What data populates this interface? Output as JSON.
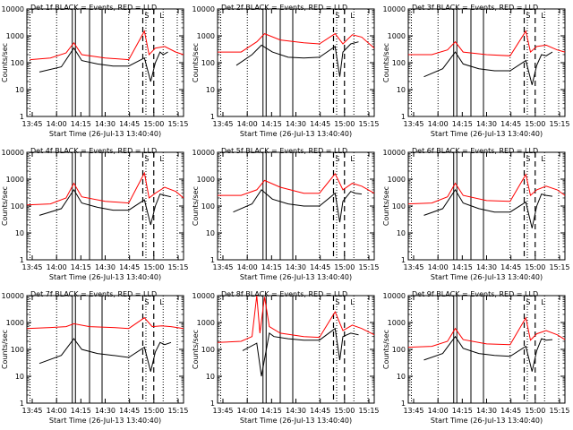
{
  "chart_data": [
    {
      "type": "line",
      "title": "Det 1f BLACK = Events, RED = LLD",
      "xlabel": "Start Time (26-Jul-13 13:40:40)",
      "ylabel": "Counts/sec",
      "xticks": [
        "13:45",
        "14:00",
        "14:15",
        "14:30",
        "14:45",
        "15:00",
        "15:15"
      ],
      "yscale": "log",
      "ylim": [
        1,
        10000
      ],
      "yticks": [
        "1",
        "10",
        "100",
        "1000",
        "10000"
      ],
      "markers": [
        "S",
        "L"
      ],
      "series": [
        {
          "name": "Events",
          "color": "#000000",
          "x": [
            0.08,
            0.22,
            0.3,
            0.35,
            0.45,
            0.55,
            0.65,
            0.75,
            0.79,
            0.82,
            0.85,
            0.87,
            0.9
          ],
          "y": [
            45,
            70,
            350,
            120,
            90,
            75,
            75,
            150,
            20,
            100,
            250,
            200,
            250
          ]
        },
        {
          "name": "LLD",
          "color": "#ff0000",
          "x": [
            0.02,
            0.15,
            0.25,
            0.3,
            0.35,
            0.5,
            0.65,
            0.75,
            0.78,
            0.82,
            0.88,
            0.95,
            1.0
          ],
          "y": [
            130,
            150,
            230,
            550,
            200,
            150,
            130,
            1500,
            200,
            350,
            400,
            250,
            200
          ]
        }
      ]
    },
    {
      "type": "line",
      "title": "Det 2f BLACK = Events, RED = LLD",
      "xlabel": "Start Time (26-Jul-13 13:40:40)",
      "ylabel": "Counts/sec",
      "xticks": [
        "13:45",
        "14:00",
        "14:15",
        "14:30",
        "14:45",
        "15:00",
        "15:15"
      ],
      "yscale": "log",
      "ylim": [
        1,
        10000
      ],
      "yticks": [
        "1",
        "10",
        "100",
        "1000",
        "10000"
      ],
      "markers": [
        "S",
        "L"
      ],
      "series": [
        {
          "name": "Events",
          "color": "#000000",
          "x": [
            0.12,
            0.22,
            0.28,
            0.35,
            0.45,
            0.55,
            0.65,
            0.75,
            0.78,
            0.8,
            0.85,
            0.9
          ],
          "y": [
            80,
            200,
            450,
            250,
            160,
            150,
            160,
            400,
            30,
            250,
            500,
            600
          ]
        },
        {
          "name": "LLD",
          "color": "#ff0000",
          "x": [
            0.0,
            0.15,
            0.25,
            0.3,
            0.4,
            0.55,
            0.65,
            0.75,
            0.8,
            0.86,
            0.92,
            1.0
          ],
          "y": [
            250,
            250,
            600,
            1200,
            700,
            550,
            500,
            1200,
            500,
            1100,
            900,
            350
          ]
        }
      ]
    },
    {
      "type": "line",
      "title": "Det 3f BLACK = Events, RED = LLD",
      "xlabel": "Start Time (26-Jul-13 13:40:40)",
      "ylabel": "Counts/sec",
      "xticks": [
        "13:45",
        "14:00",
        "14:15",
        "14:30",
        "14:45",
        "15:00",
        "15:15"
      ],
      "yscale": "log",
      "ylim": [
        1,
        10000
      ],
      "yticks": [
        "1",
        "10",
        "100",
        "1000",
        "10000"
      ],
      "markers": [
        "S",
        "L"
      ],
      "series": [
        {
          "name": "Events",
          "color": "#000000",
          "x": [
            0.1,
            0.22,
            0.3,
            0.35,
            0.45,
            0.55,
            0.65,
            0.75,
            0.79,
            0.82,
            0.85,
            0.88,
            0.92
          ],
          "y": [
            30,
            60,
            250,
            90,
            60,
            50,
            50,
            120,
            15,
            80,
            200,
            180,
            250
          ]
        },
        {
          "name": "LLD",
          "color": "#ff0000",
          "x": [
            0.0,
            0.15,
            0.25,
            0.3,
            0.35,
            0.5,
            0.65,
            0.75,
            0.78,
            0.82,
            0.88,
            0.95,
            1.0
          ],
          "y": [
            200,
            200,
            300,
            600,
            250,
            200,
            180,
            1500,
            250,
            400,
            450,
            300,
            250
          ]
        }
      ]
    },
    {
      "type": "line",
      "title": "Det 4f BLACK = Events, RED = LLD",
      "xlabel": "Start Time (26-Jul-13 13:40:40)",
      "ylabel": "Counts/sec",
      "xticks": [
        "13:45",
        "14:00",
        "14:15",
        "14:30",
        "14:45",
        "15:00",
        "15:15"
      ],
      "yscale": "log",
      "ylim": [
        1,
        10000
      ],
      "yticks": [
        "1",
        "10",
        "100",
        "1000",
        "10000"
      ],
      "markers": [
        "S",
        "L"
      ],
      "series": [
        {
          "name": "Events",
          "color": "#000000",
          "x": [
            0.08,
            0.22,
            0.3,
            0.35,
            0.45,
            0.55,
            0.65,
            0.75,
            0.79,
            0.82,
            0.85,
            0.88,
            0.92
          ],
          "y": [
            45,
            80,
            400,
            130,
            90,
            70,
            70,
            170,
            20,
            100,
            280,
            250,
            220
          ]
        },
        {
          "name": "LLD",
          "color": "#ff0000",
          "x": [
            0.0,
            0.15,
            0.25,
            0.3,
            0.35,
            0.5,
            0.65,
            0.75,
            0.78,
            0.82,
            0.88,
            0.95,
            1.0
          ],
          "y": [
            110,
            120,
            200,
            700,
            220,
            150,
            130,
            1700,
            200,
            300,
            500,
            350,
            200
          ]
        }
      ]
    },
    {
      "type": "line",
      "title": "Det 5f BLACK = Events, RED = LLD",
      "xlabel": "Start Time (26-Jul-13 13:40:40)",
      "ylabel": "Counts/sec",
      "xticks": [
        "13:45",
        "14:00",
        "14:15",
        "14:30",
        "14:45",
        "15:00",
        "15:15"
      ],
      "yscale": "log",
      "ylim": [
        1,
        10000
      ],
      "yticks": [
        "1",
        "10",
        "100",
        "1000",
        "10000"
      ],
      "markers": [
        "S",
        "L"
      ],
      "series": [
        {
          "name": "Events",
          "color": "#000000",
          "x": [
            0.1,
            0.22,
            0.28,
            0.35,
            0.45,
            0.55,
            0.65,
            0.75,
            0.78,
            0.8,
            0.85,
            0.88,
            0.92
          ],
          "y": [
            60,
            120,
            400,
            180,
            120,
            100,
            100,
            300,
            25,
            150,
            350,
            300,
            280
          ]
        },
        {
          "name": "LLD",
          "color": "#ff0000",
          "x": [
            0.0,
            0.15,
            0.25,
            0.3,
            0.4,
            0.55,
            0.65,
            0.75,
            0.8,
            0.86,
            0.92,
            1.0
          ],
          "y": [
            250,
            250,
            400,
            900,
            500,
            300,
            300,
            1600,
            400,
            700,
            550,
            300
          ]
        }
      ]
    },
    {
      "type": "line",
      "title": "Det 6f BLACK = Events, RED = LLD",
      "xlabel": "Start Time (26-Jul-13 13:40:40)",
      "ylabel": "Counts/sec",
      "xticks": [
        "13:45",
        "14:00",
        "14:15",
        "14:30",
        "14:45",
        "15:00",
        "15:15"
      ],
      "yscale": "log",
      "ylim": [
        1,
        10000
      ],
      "yticks": [
        "1",
        "10",
        "100",
        "1000",
        "10000"
      ],
      "markers": [
        "S",
        "L"
      ],
      "series": [
        {
          "name": "Events",
          "color": "#000000",
          "x": [
            0.1,
            0.22,
            0.3,
            0.35,
            0.45,
            0.55,
            0.65,
            0.75,
            0.79,
            0.82,
            0.85,
            0.88,
            0.92
          ],
          "y": [
            45,
            80,
            400,
            130,
            80,
            60,
            60,
            140,
            15,
            100,
            280,
            250,
            230
          ]
        },
        {
          "name": "LLD",
          "color": "#ff0000",
          "x": [
            0.0,
            0.15,
            0.25,
            0.3,
            0.35,
            0.5,
            0.65,
            0.75,
            0.78,
            0.82,
            0.88,
            0.95,
            1.0
          ],
          "y": [
            120,
            130,
            220,
            700,
            250,
            160,
            150,
            1500,
            250,
            400,
            550,
            400,
            250
          ]
        }
      ]
    },
    {
      "type": "line",
      "title": "Det 7f BLACK = Events, RED = LLD",
      "xlabel": "Start Time (26-Jul-13 13:40:40)",
      "ylabel": "Counts/sec",
      "xticks": [
        "13:45",
        "14:00",
        "14:15",
        "14:30",
        "14:45",
        "15:00",
        "15:15"
      ],
      "yscale": "log",
      "ylim": [
        1,
        10000
      ],
      "yticks": [
        "1",
        "10",
        "100",
        "1000",
        "10000"
      ],
      "markers": [
        "S",
        "L"
      ],
      "series": [
        {
          "name": "Events",
          "color": "#000000",
          "x": [
            0.08,
            0.22,
            0.3,
            0.35,
            0.45,
            0.55,
            0.65,
            0.75,
            0.79,
            0.82,
            0.85,
            0.88,
            0.92
          ],
          "y": [
            30,
            60,
            250,
            100,
            70,
            60,
            50,
            120,
            15,
            80,
            180,
            150,
            180
          ]
        },
        {
          "name": "LLD",
          "color": "#ff0000",
          "x": [
            0.0,
            0.15,
            0.25,
            0.3,
            0.4,
            0.55,
            0.65,
            0.75,
            0.8,
            0.86,
            0.92,
            1.0
          ],
          "y": [
            600,
            650,
            700,
            900,
            700,
            650,
            600,
            1500,
            700,
            750,
            700,
            600
          ]
        }
      ]
    },
    {
      "type": "line",
      "title": "Det 8f BLACK = Events, RED = LLD",
      "xlabel": "Start Time (26-Jul-13 13:40:40)",
      "ylabel": "Counts/sec",
      "xticks": [
        "13:45",
        "14:00",
        "14:15",
        "14:30",
        "14:45",
        "15:00",
        "15:15"
      ],
      "yscale": "log",
      "ylim": [
        1,
        10000
      ],
      "yticks": [
        "1",
        "10",
        "100",
        "1000",
        "10000"
      ],
      "markers": [
        "S",
        "L"
      ],
      "series": [
        {
          "name": "Events",
          "color": "#000000",
          "x": [
            0.16,
            0.25,
            0.28,
            0.33,
            0.36,
            0.45,
            0.55,
            0.65,
            0.75,
            0.78,
            0.8,
            0.85,
            0.9
          ],
          "y": [
            90,
            170,
            10,
            400,
            300,
            250,
            220,
            220,
            600,
            40,
            300,
            400,
            350
          ]
        },
        {
          "name": "LLD",
          "color": "#ff0000",
          "x": [
            0.0,
            0.15,
            0.22,
            0.25,
            0.27,
            0.3,
            0.33,
            0.4,
            0.55,
            0.65,
            0.75,
            0.8,
            0.86,
            0.92,
            1.0
          ],
          "y": [
            180,
            200,
            300,
            10000,
            400,
            9000,
            700,
            400,
            300,
            280,
            2500,
            500,
            800,
            600,
            350
          ]
        }
      ]
    },
    {
      "type": "line",
      "title": "Det 9f BLACK = Events, RED = LLD",
      "xlabel": "Start Time (26-Jul-13 13:40:40)",
      "ylabel": "Counts/sec",
      "xticks": [
        "13:45",
        "14:00",
        "14:15",
        "14:30",
        "14:45",
        "15:00",
        "15:15"
      ],
      "yscale": "log",
      "ylim": [
        1,
        10000
      ],
      "yticks": [
        "1",
        "10",
        "100",
        "1000",
        "10000"
      ],
      "markers": [
        "S",
        "L"
      ],
      "series": [
        {
          "name": "Events",
          "color": "#000000",
          "x": [
            0.1,
            0.22,
            0.3,
            0.35,
            0.45,
            0.55,
            0.65,
            0.75,
            0.79,
            0.82,
            0.85,
            0.88,
            0.92
          ],
          "y": [
            40,
            70,
            300,
            110,
            70,
            60,
            55,
            130,
            15,
            90,
            250,
            220,
            230
          ]
        },
        {
          "name": "LLD",
          "color": "#ff0000",
          "x": [
            0.0,
            0.15,
            0.25,
            0.3,
            0.35,
            0.5,
            0.65,
            0.75,
            0.78,
            0.82,
            0.88,
            0.95,
            1.0
          ],
          "y": [
            120,
            130,
            200,
            600,
            230,
            160,
            150,
            1500,
            220,
            380,
            500,
            350,
            230
          ]
        }
      ]
    }
  ]
}
